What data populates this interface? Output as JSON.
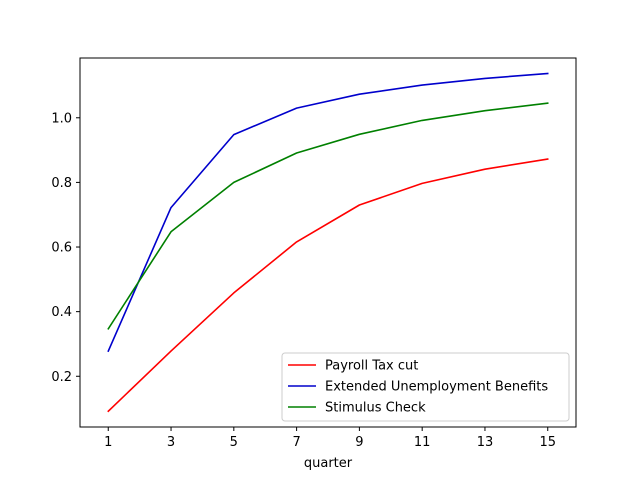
{
  "chart_data": {
    "type": "line",
    "title": "",
    "xlabel": "quarter",
    "ylabel": "",
    "x": [
      1,
      3,
      5,
      7,
      9,
      11,
      13,
      15
    ],
    "xticks": [
      "1",
      "3",
      "5",
      "7",
      "9",
      "11",
      "13",
      "15"
    ],
    "yticks": [
      "0.2",
      "0.4",
      "0.6",
      "0.8",
      "1.0"
    ],
    "xlim": [
      0.1,
      15.9
    ],
    "ylim": [
      0.043,
      1.185
    ],
    "grid": false,
    "legend_position": "lower-right",
    "series": [
      {
        "name": "Payroll Tax cut",
        "color": "#ff0000",
        "values": [
          0.092,
          0.278,
          0.458,
          0.616,
          0.73,
          0.797,
          0.841,
          0.872
        ]
      },
      {
        "name": "Extended Unemployment Benefits",
        "color": "#0000cc",
        "values": [
          0.278,
          0.722,
          0.948,
          1.03,
          1.073,
          1.101,
          1.122,
          1.137
        ]
      },
      {
        "name": "Stimulus Check",
        "color": "#008000",
        "values": [
          0.347,
          0.647,
          0.8,
          0.891,
          0.949,
          0.992,
          1.022,
          1.045
        ]
      }
    ]
  }
}
